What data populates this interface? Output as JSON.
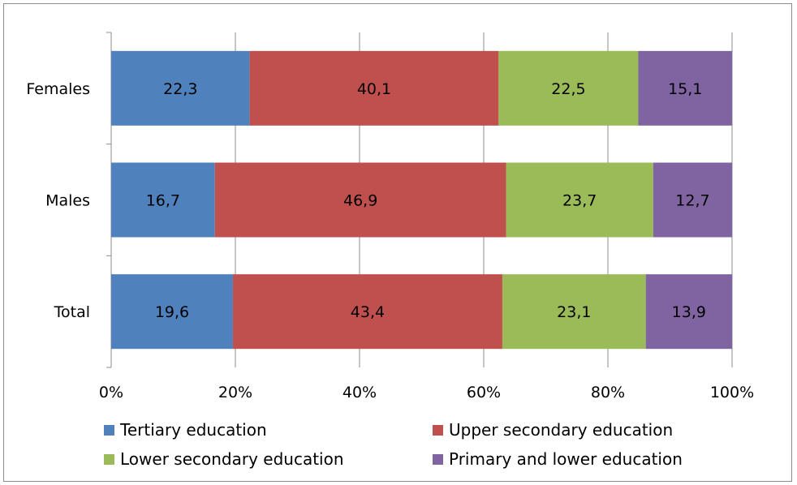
{
  "chart_data": {
    "type": "bar",
    "orientation": "horizontal",
    "stacked": "percent",
    "categories": [
      "Females",
      "Males",
      "Total"
    ],
    "series": [
      {
        "name": "Tertiary education",
        "values": [
          22.3,
          16.7,
          19.6
        ],
        "labels": [
          "22,3",
          "16,7",
          "19,6"
        ],
        "color": "#4f81bd"
      },
      {
        "name": "Upper secondary education",
        "values": [
          40.1,
          46.9,
          43.4
        ],
        "labels": [
          "40,1",
          "46,9",
          "43,4"
        ],
        "color": "#c0504d"
      },
      {
        "name": "Lower secondary education",
        "values": [
          22.5,
          23.7,
          23.1
        ],
        "labels": [
          "22,5",
          "23,7",
          "23,1"
        ],
        "color": "#9bbb59"
      },
      {
        "name": "Primary and lower education",
        "values": [
          15.1,
          12.7,
          13.9
        ],
        "labels": [
          "15,1",
          "12,7",
          "13,9"
        ],
        "color": "#8064a2"
      }
    ],
    "xlim": [
      0,
      100
    ],
    "xticks": [
      "0%",
      "20%",
      "40%",
      "60%",
      "80%",
      "100%"
    ],
    "grid": true,
    "legend_position": "bottom",
    "title": "",
    "xlabel": "",
    "ylabel": ""
  }
}
